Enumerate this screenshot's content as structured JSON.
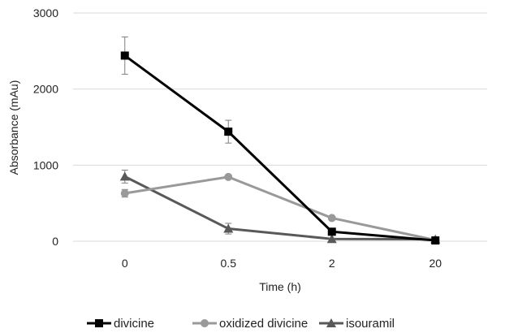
{
  "chart_data": {
    "type": "line",
    "title": "",
    "xlabel": "Time (h)",
    "ylabel": "Absorbance (mAu)",
    "categories": [
      "0",
      "0.5",
      "2",
      "20"
    ],
    "ylim": [
      0,
      3000
    ],
    "yticks": [
      "0",
      "1000",
      "2000",
      "3000"
    ],
    "grid": true,
    "legend": "bottom",
    "series": [
      {
        "name": "divicine",
        "marker": "square",
        "color": "#000000",
        "values": [
          2440,
          1440,
          125,
          10
        ],
        "errors": [
          245,
          150,
          30,
          10
        ]
      },
      {
        "name": "oxidized divicine",
        "marker": "circle",
        "color": "#999999",
        "values": [
          630,
          845,
          305,
          15
        ],
        "errors": [
          50,
          20,
          15,
          5
        ]
      },
      {
        "name": "isouramil",
        "marker": "triangle",
        "color": "#595959",
        "values": [
          850,
          165,
          30,
          25
        ],
        "errors": [
          85,
          70,
          10,
          5
        ]
      }
    ]
  }
}
